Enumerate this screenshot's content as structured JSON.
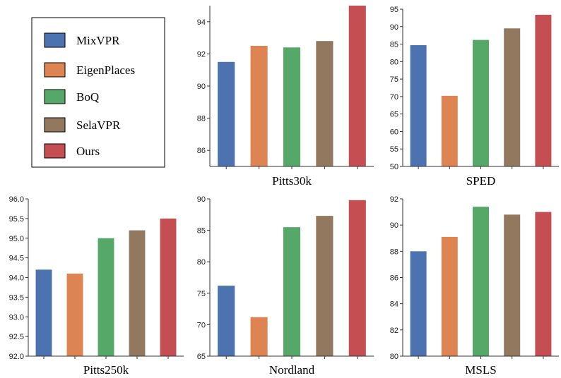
{
  "legend": {
    "items": [
      {
        "label": "MixVPR",
        "color": "#4c72b0"
      },
      {
        "label": "EigenPlaces",
        "color": "#dd8452"
      },
      {
        "label": "BoQ",
        "color": "#55a868"
      },
      {
        "label": "SelaVPR",
        "color": "#937860"
      },
      {
        "label": "Ours",
        "color": "#c44e52"
      }
    ]
  },
  "chart_data": [
    {
      "type": "bar",
      "title": "Pitts30k",
      "categories": [
        "MixVPR",
        "EigenPlaces",
        "BoQ",
        "SelaVPR",
        "Ours"
      ],
      "values": [
        91.5,
        92.5,
        92.4,
        92.8,
        95.0
      ],
      "ylim": [
        85,
        95
      ],
      "yticks": [
        86,
        88,
        90,
        92,
        94
      ],
      "ytick_labels": [
        "86",
        "88",
        "90",
        "92",
        "94"
      ]
    },
    {
      "type": "bar",
      "title": "SPED",
      "categories": [
        "MixVPR",
        "EigenPlaces",
        "BoQ",
        "SelaVPR",
        "Ours"
      ],
      "values": [
        84.7,
        70.2,
        86.2,
        89.5,
        93.4
      ],
      "ylim": [
        50,
        95
      ],
      "yticks": [
        50,
        55,
        60,
        65,
        70,
        75,
        80,
        85,
        90,
        95
      ],
      "ytick_labels": [
        "50",
        "55",
        "60",
        "65",
        "70",
        "75",
        "80",
        "85",
        "90",
        "95"
      ]
    },
    {
      "type": "bar",
      "title": "Pitts250k",
      "categories": [
        "MixVPR",
        "EigenPlaces",
        "BoQ",
        "SelaVPR",
        "Ours"
      ],
      "values": [
        94.2,
        94.1,
        95.0,
        95.2,
        95.5
      ],
      "ylim": [
        92.0,
        96.0
      ],
      "yticks": [
        92.0,
        92.5,
        93.0,
        93.5,
        94.0,
        94.5,
        95.0,
        95.5,
        96.0
      ],
      "ytick_labels": [
        "92.0",
        "92.5",
        "93.0",
        "93.5",
        "94.0",
        "94.5",
        "95.0",
        "95.5",
        "96.0"
      ]
    },
    {
      "type": "bar",
      "title": "Nordland",
      "categories": [
        "MixVPR",
        "EigenPlaces",
        "BoQ",
        "SelaVPR",
        "Ours"
      ],
      "values": [
        76.2,
        71.2,
        85.5,
        87.3,
        89.8
      ],
      "ylim": [
        65,
        90
      ],
      "yticks": [
        65,
        70,
        75,
        80,
        85,
        90
      ],
      "ytick_labels": [
        "65",
        "70",
        "75",
        "80",
        "85",
        "90"
      ]
    },
    {
      "type": "bar",
      "title": "MSLS",
      "categories": [
        "MixVPR",
        "EigenPlaces",
        "BoQ",
        "SelaVPR",
        "Ours"
      ],
      "values": [
        88.0,
        89.1,
        91.4,
        90.8,
        91.0
      ],
      "ylim": [
        80,
        92
      ],
      "yticks": [
        80,
        82,
        84,
        86,
        88,
        90,
        92
      ],
      "ytick_labels": [
        "80",
        "82",
        "84",
        "86",
        "88",
        "90",
        "92"
      ]
    }
  ]
}
